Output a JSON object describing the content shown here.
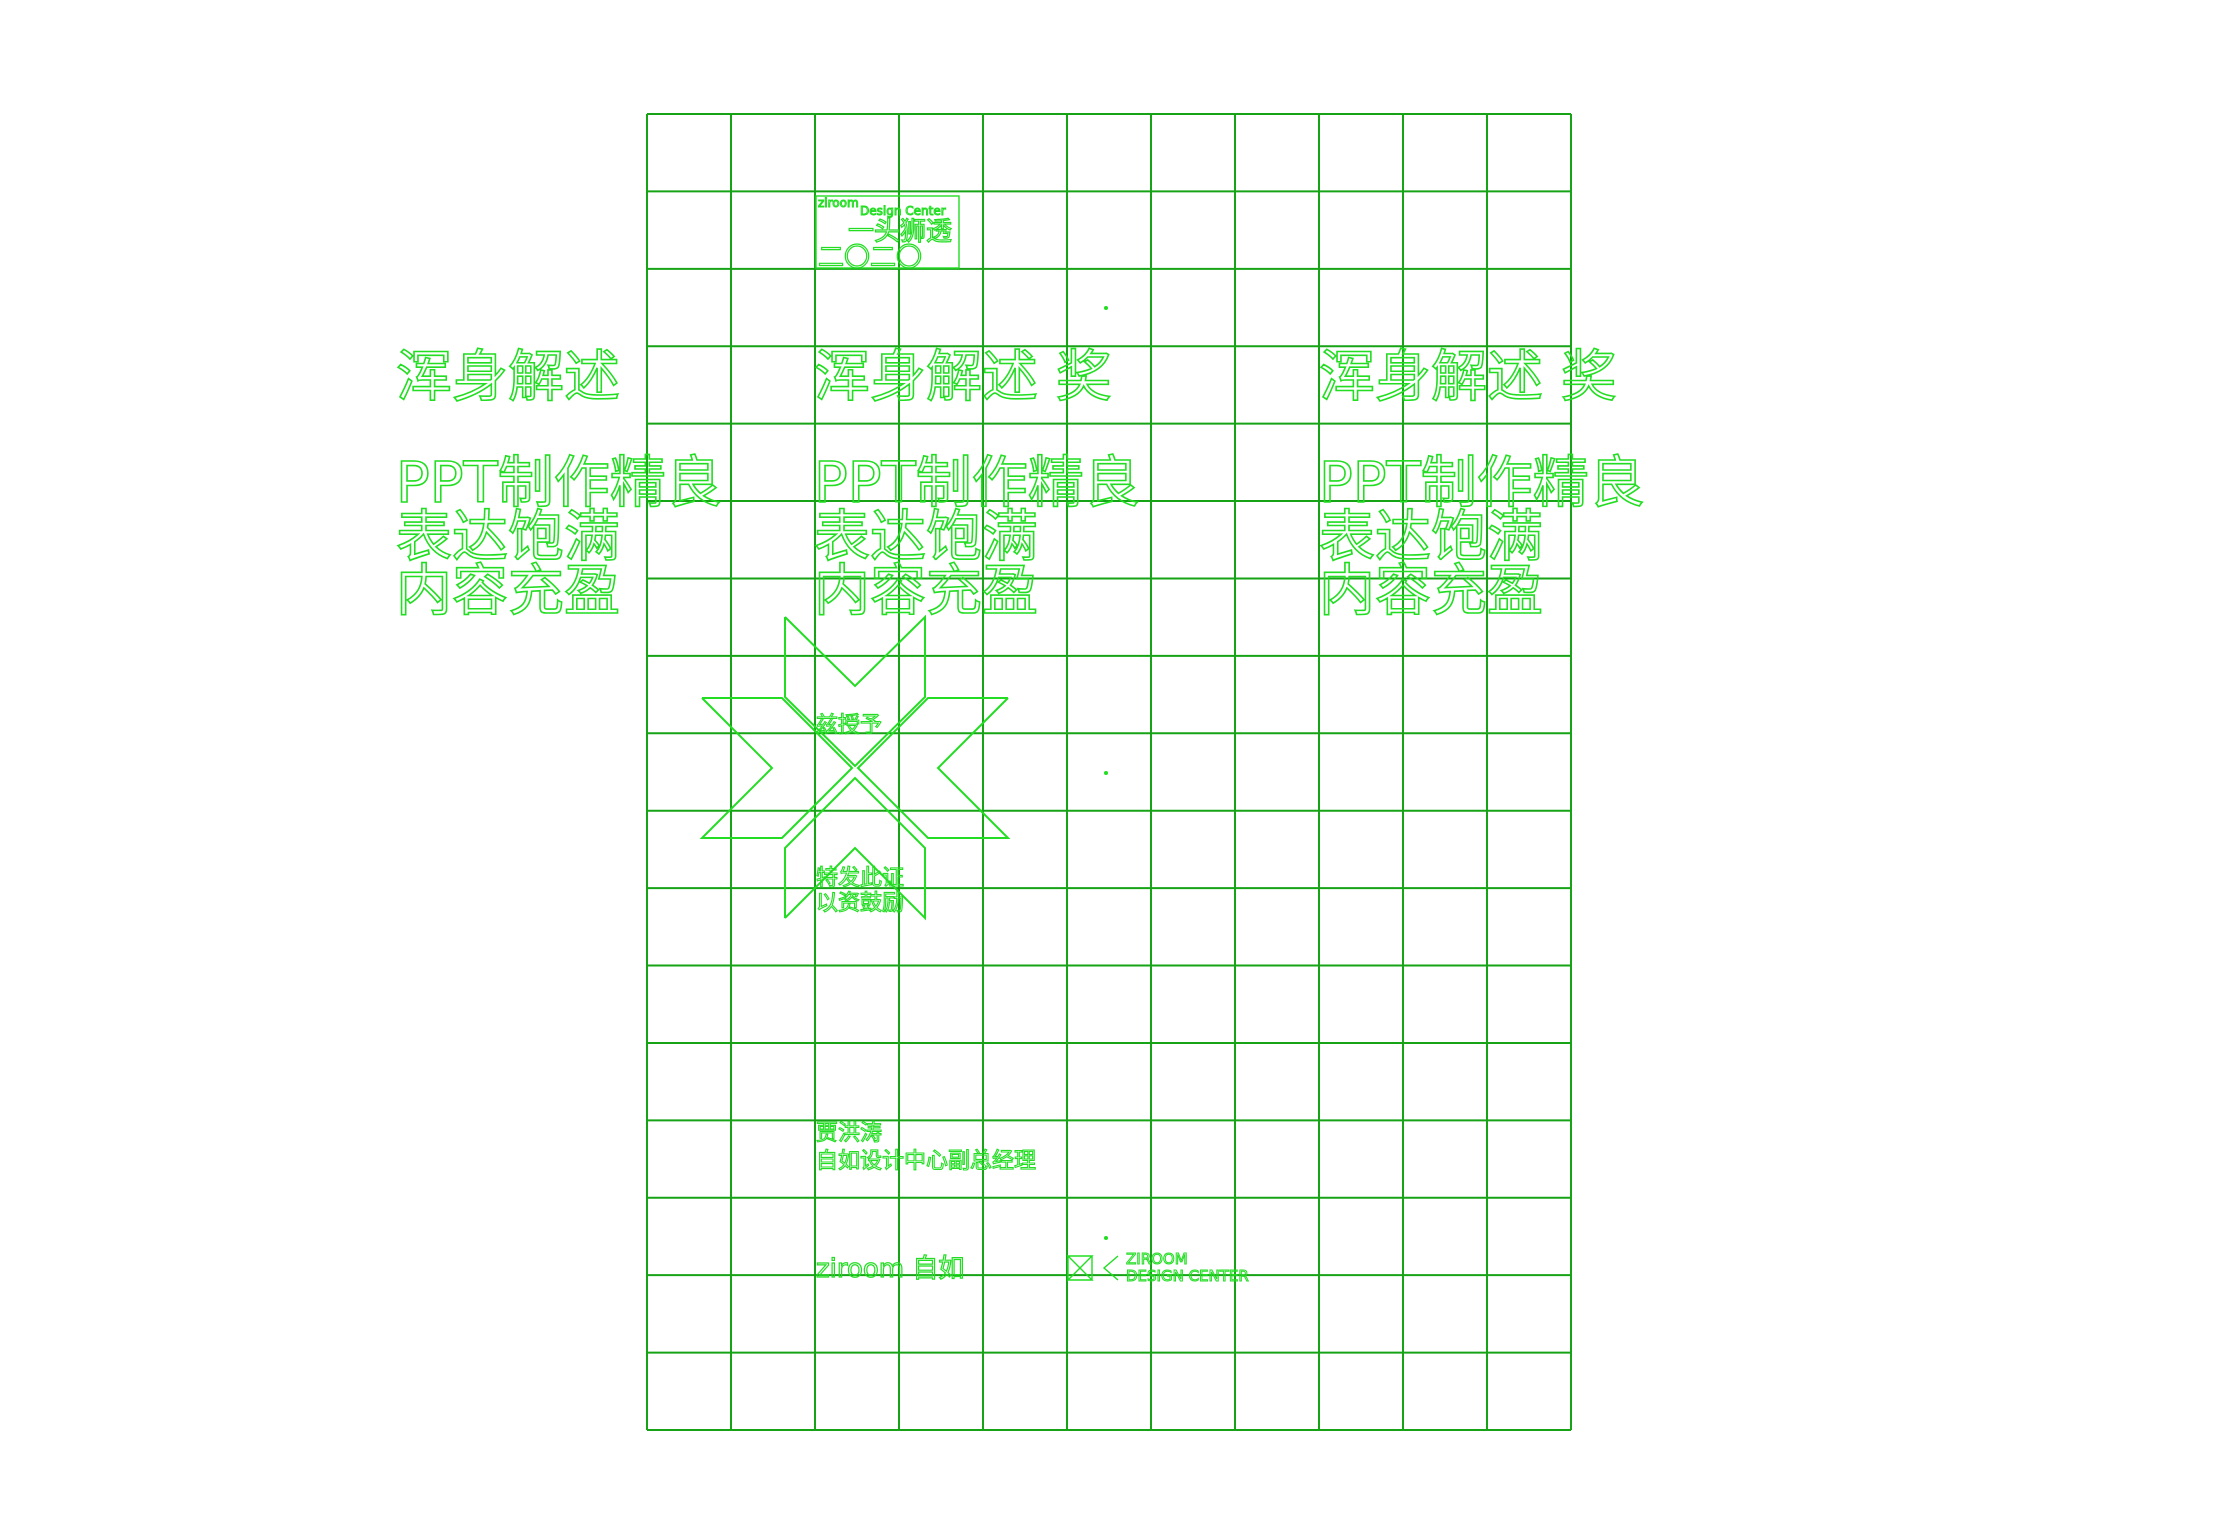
{
  "colors": {
    "grid": "#16a316",
    "outline": "#22dd22",
    "background": "#ffffff"
  },
  "grid": {
    "columns": 11,
    "rows": 17
  },
  "badge": {
    "brand": "ziroom",
    "subtitle": "Design Center",
    "title": "一头狮透",
    "year": "二〇二〇"
  },
  "blocks": [
    {
      "heading": "浑身解述",
      "lines": [
        "PPT制作精良",
        "表达饱满",
        "内容充盈"
      ]
    },
    {
      "heading": "浑身解述 奖",
      "lines": [
        "PPT制作精良",
        "表达饱满",
        "内容充盈"
      ]
    },
    {
      "heading": "浑身解述 奖",
      "lines": [
        "PPT制作精良",
        "表达饱满",
        "内容充盈"
      ]
    }
  ],
  "award": {
    "grantee_label": "兹授予",
    "cert_lines": [
      "特发此证",
      "以资鼓励"
    ]
  },
  "signer": {
    "name": "贾洪涛",
    "title": "自如设计中心副总经理"
  },
  "footer": {
    "logo_left": "ziroom 自如",
    "logo_right_lines": [
      "ZIROOM",
      "DESIGN CENTER"
    ]
  }
}
